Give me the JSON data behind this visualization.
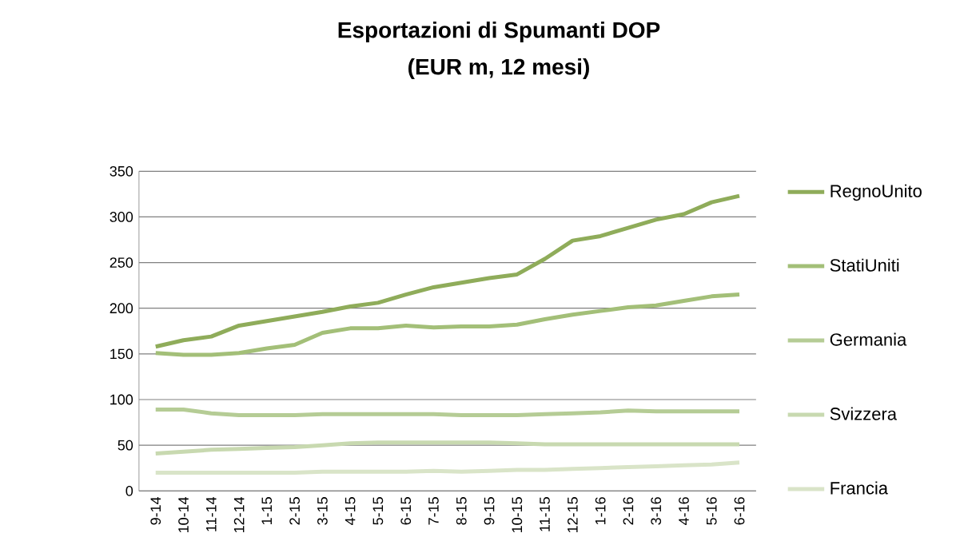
{
  "chart_data": {
    "type": "line",
    "title": "Esportazioni di Spumanti DOP",
    "subtitle": "(EUR m, 12 mesi)",
    "categories": [
      "9-14",
      "10-14",
      "11-14",
      "12-14",
      "1-15",
      "2-15",
      "3-15",
      "4-15",
      "5-15",
      "6-15",
      "7-15",
      "8-15",
      "9-15",
      "10-15",
      "11-15",
      "12-15",
      "1-16",
      "2-16",
      "3-16",
      "4-16",
      "5-16",
      "6-16"
    ],
    "series": [
      {
        "name": "RegnoUnito",
        "color": "#8fac5a",
        "values": [
          158,
          165,
          169,
          181,
          186,
          191,
          196,
          202,
          206,
          215,
          223,
          228,
          233,
          237,
          254,
          274,
          279,
          288,
          297,
          303,
          316,
          323
        ]
      },
      {
        "name": "StatiUniti",
        "color": "#a3bf78",
        "values": [
          151,
          149,
          149,
          151,
          156,
          160,
          173,
          178,
          178,
          181,
          179,
          180,
          180,
          182,
          188,
          193,
          197,
          201,
          203,
          208,
          213,
          215
        ]
      },
      {
        "name": "Germania",
        "color": "#b5cc95",
        "values": [
          89,
          89,
          85,
          83,
          83,
          83,
          84,
          84,
          84,
          84,
          84,
          83,
          83,
          83,
          84,
          85,
          86,
          88,
          87,
          87,
          87,
          87
        ]
      },
      {
        "name": "Svizzera",
        "color": "#c8d9b0",
        "values": [
          41,
          43,
          45,
          46,
          47,
          48,
          50,
          52,
          53,
          53,
          53,
          53,
          53,
          52,
          51,
          51,
          51,
          51,
          51,
          51,
          51,
          51
        ]
      },
      {
        "name": "Francia",
        "color": "#d9e4c8",
        "values": [
          20,
          20,
          20,
          20,
          20,
          20,
          21,
          21,
          21,
          21,
          22,
          21,
          22,
          23,
          23,
          24,
          25,
          26,
          27,
          28,
          29,
          31
        ]
      }
    ],
    "ylim": [
      0,
      350
    ],
    "yticks": [
      0,
      50,
      100,
      150,
      200,
      250,
      300,
      350
    ],
    "grid": "y",
    "legend": "right",
    "marker": "none",
    "line_style": "solid"
  }
}
